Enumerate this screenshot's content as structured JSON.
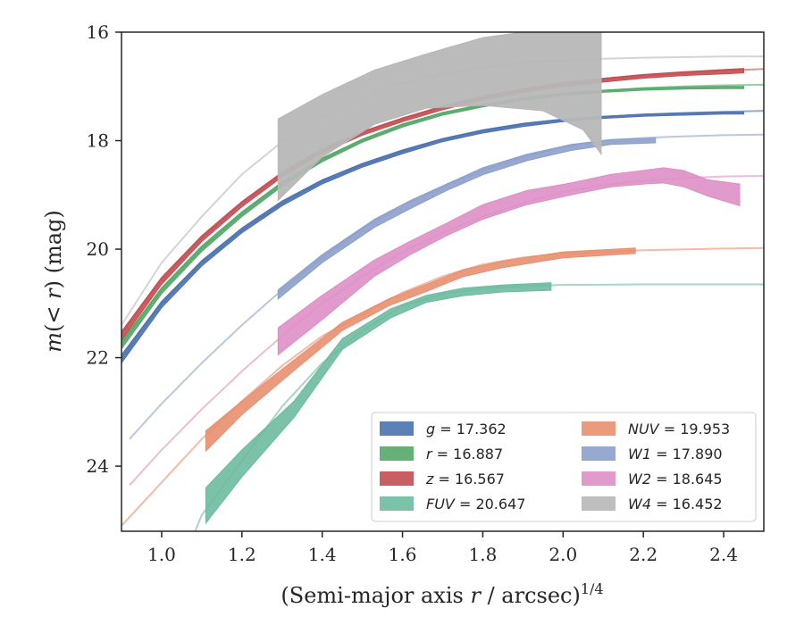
{
  "chart_data": {
    "type": "line",
    "title": "",
    "xlabel": "(Semi-major axis r / arcsec)^(1/4)",
    "xlabel_parts": {
      "pre": "(Semi-major axis ",
      "var": "r",
      "post": " / arcsec)",
      "sup": "1/4"
    },
    "ylabel": "m(< r) (mag)",
    "ylabel_parts": {
      "m": "m",
      "inner": "(< ",
      "r": "r",
      "post": ") (mag)"
    },
    "xlim": [
      0.9,
      2.5
    ],
    "ylim": [
      25.2,
      16.0
    ],
    "y_inverted": true,
    "xticks": [
      "1.0",
      "1.2",
      "1.4",
      "1.6",
      "1.8",
      "2.0",
      "2.2",
      "2.4"
    ],
    "xtick_values": [
      1.0,
      1.2,
      1.4,
      1.6,
      1.8,
      2.0,
      2.2,
      2.4
    ],
    "yticks": [
      "16",
      "18",
      "20",
      "22",
      "24"
    ],
    "ytick_values": [
      16,
      18,
      20,
      22,
      24
    ],
    "grid": false,
    "legend_position": "lower-right",
    "series": [
      {
        "name": "g = 17.362",
        "var": "g",
        "value": "17.362",
        "color": "#4c72b0",
        "model_x": [
          0.9,
          1.0,
          1.1,
          1.2,
          1.3,
          1.4,
          1.5,
          1.6,
          1.7,
          1.8,
          1.9,
          2.0,
          2.1,
          2.2,
          2.3,
          2.4,
          2.5
        ],
        "model_y": [
          22.0,
          21.0,
          20.25,
          19.65,
          19.15,
          18.75,
          18.45,
          18.2,
          17.98,
          17.82,
          17.7,
          17.62,
          17.56,
          17.52,
          17.49,
          17.47,
          17.45
        ],
        "band_x": [
          0.9,
          1.0,
          1.1,
          1.2,
          1.3,
          1.4,
          1.5,
          1.6,
          1.7,
          1.8,
          1.9,
          2.0,
          2.1,
          2.2,
          2.3,
          2.4,
          2.45
        ],
        "band_lo": [
          21.95,
          20.96,
          20.21,
          19.61,
          19.11,
          18.72,
          18.42,
          18.17,
          17.96,
          17.8,
          17.68,
          17.6,
          17.55,
          17.51,
          17.49,
          17.47,
          17.47
        ],
        "band_hi": [
          22.1,
          21.08,
          20.31,
          19.7,
          19.2,
          18.8,
          18.49,
          18.24,
          18.02,
          17.86,
          17.74,
          17.65,
          17.59,
          17.55,
          17.53,
          17.51,
          17.51
        ]
      },
      {
        "name": "r = 16.887",
        "var": "r",
        "value": "16.887",
        "color": "#55a868",
        "model_x": [
          0.9,
          1.0,
          1.1,
          1.2,
          1.3,
          1.4,
          1.5,
          1.6,
          1.7,
          1.8,
          1.9,
          2.0,
          2.1,
          2.2,
          2.3,
          2.4,
          2.5
        ],
        "model_y": [
          21.75,
          20.75,
          19.98,
          19.35,
          18.8,
          18.35,
          18.0,
          17.72,
          17.5,
          17.35,
          17.23,
          17.14,
          17.08,
          17.03,
          17.0,
          16.98,
          16.97
        ],
        "band_x": [
          0.9,
          1.0,
          1.1,
          1.2,
          1.3,
          1.4,
          1.5,
          1.6,
          1.7,
          1.8,
          1.9,
          2.0,
          2.1,
          2.2,
          2.3,
          2.4,
          2.45
        ],
        "band_lo": [
          21.7,
          20.71,
          19.94,
          19.31,
          18.76,
          18.32,
          17.97,
          17.69,
          17.48,
          17.33,
          17.21,
          17.12,
          17.07,
          17.03,
          17.01,
          17.0,
          17.0
        ],
        "band_hi": [
          21.84,
          20.82,
          20.04,
          19.4,
          18.84,
          18.39,
          18.03,
          17.75,
          17.53,
          17.38,
          17.26,
          17.17,
          17.11,
          17.07,
          17.05,
          17.04,
          17.04
        ]
      },
      {
        "name": "z = 16.567",
        "var": "z",
        "value": "16.567",
        "color": "#c44e52",
        "model_x": [
          0.9,
          1.0,
          1.1,
          1.2,
          1.3,
          1.4,
          1.5,
          1.6,
          1.7,
          1.8,
          1.9,
          2.0,
          2.1,
          2.2,
          2.3,
          2.4,
          2.5
        ],
        "model_y": [
          21.55,
          20.55,
          19.78,
          19.15,
          18.6,
          18.17,
          17.85,
          17.6,
          17.38,
          17.2,
          17.06,
          16.95,
          16.87,
          16.8,
          16.75,
          16.71,
          16.68
        ],
        "band_x": [
          0.9,
          1.0,
          1.1,
          1.2,
          1.3,
          1.4,
          1.5,
          1.6,
          1.7,
          1.8,
          1.9,
          2.0,
          2.1,
          2.2,
          2.3,
          2.4,
          2.45
        ],
        "band_lo": [
          21.52,
          20.52,
          19.75,
          19.12,
          18.58,
          18.15,
          17.83,
          17.58,
          17.36,
          17.18,
          17.04,
          16.93,
          16.85,
          16.78,
          16.73,
          16.69,
          16.67
        ],
        "band_hi": [
          21.68,
          20.65,
          19.86,
          19.22,
          18.67,
          18.23,
          17.9,
          17.65,
          17.43,
          17.25,
          17.11,
          17.0,
          16.92,
          16.85,
          16.8,
          16.77,
          16.75
        ]
      },
      {
        "name": "FUV = 20.647",
        "var": "FUV",
        "value": "20.647",
        "color": "#6dbb9f",
        "model_x": [
          1.05,
          1.1,
          1.2,
          1.3,
          1.4,
          1.5,
          1.6,
          1.7,
          1.8,
          1.9,
          2.0,
          2.2,
          2.4,
          2.5
        ],
        "model_y": [
          25.8,
          24.9,
          23.9,
          22.9,
          22.1,
          21.5,
          21.05,
          20.83,
          20.72,
          20.68,
          20.66,
          20.65,
          20.65,
          20.65
        ],
        "band_x": [
          1.11,
          1.2,
          1.33,
          1.45,
          1.57,
          1.66,
          1.75,
          1.85,
          1.97
        ],
        "band_lo": [
          24.4,
          23.7,
          22.8,
          21.65,
          21.1,
          20.85,
          20.72,
          20.66,
          20.62
        ],
        "band_hi": [
          25.05,
          24.2,
          23.1,
          21.85,
          21.27,
          20.98,
          20.86,
          20.79,
          20.76
        ]
      },
      {
        "name": "NUV = 19.953",
        "var": "NUV",
        "value": "19.953",
        "color": "#e8906f",
        "model_x": [
          0.9,
          1.0,
          1.1,
          1.2,
          1.3,
          1.4,
          1.5,
          1.6,
          1.7,
          1.8,
          1.9,
          2.0,
          2.2,
          2.4,
          2.5
        ],
        "model_y": [
          25.1,
          24.3,
          23.5,
          22.8,
          22.15,
          21.6,
          21.2,
          20.8,
          20.5,
          20.28,
          20.15,
          20.08,
          20.02,
          19.99,
          19.98
        ],
        "band_x": [
          1.11,
          1.2,
          1.32,
          1.45,
          1.57,
          1.66,
          1.75,
          1.85,
          2.0,
          2.18
        ],
        "band_lo": [
          23.35,
          22.8,
          22.1,
          21.35,
          20.9,
          20.65,
          20.38,
          20.22,
          20.05,
          19.98
        ],
        "band_hi": [
          23.72,
          23.05,
          22.3,
          21.5,
          21.03,
          20.78,
          20.51,
          20.34,
          20.16,
          20.08
        ]
      },
      {
        "name": "W1 = 17.890",
        "var": "W1",
        "value": "17.890",
        "color": "#8da0cb",
        "model_x": [
          0.92,
          1.0,
          1.1,
          1.2,
          1.3,
          1.4,
          1.5,
          1.6,
          1.7,
          1.8,
          1.9,
          2.0,
          2.1,
          2.2,
          2.3,
          2.4,
          2.5
        ],
        "model_y": [
          23.5,
          22.85,
          22.1,
          21.4,
          20.75,
          20.15,
          19.62,
          19.2,
          18.85,
          18.55,
          18.3,
          18.12,
          18.0,
          17.95,
          17.92,
          17.9,
          17.89
        ],
        "band_x": [
          1.29,
          1.4,
          1.53,
          1.62,
          1.71,
          1.8,
          1.91,
          2.02,
          2.12,
          2.23
        ],
        "band_lo": [
          20.75,
          20.1,
          19.45,
          19.1,
          18.8,
          18.5,
          18.25,
          18.07,
          17.98,
          17.95
        ],
        "band_hi": [
          20.92,
          20.25,
          19.6,
          19.25,
          18.92,
          18.63,
          18.37,
          18.18,
          18.07,
          18.04
        ]
      },
      {
        "name": "W2 = 18.645",
        "var": "W2",
        "value": "18.645",
        "color": "#dd8fc5",
        "model_x": [
          0.92,
          1.0,
          1.1,
          1.2,
          1.3,
          1.4,
          1.5,
          1.6,
          1.7,
          1.8,
          1.9,
          2.0,
          2.1,
          2.2,
          2.3,
          2.4,
          2.5
        ],
        "model_y": [
          24.35,
          23.7,
          22.95,
          22.25,
          21.6,
          21.0,
          20.5,
          20.05,
          19.7,
          19.4,
          19.15,
          18.95,
          18.82,
          18.74,
          18.69,
          18.66,
          18.65
        ],
        "band_x": [
          1.29,
          1.4,
          1.53,
          1.62,
          1.71,
          1.8,
          1.91,
          2.02,
          2.12,
          2.2,
          2.25,
          2.3,
          2.36,
          2.44
        ],
        "band_lo": [
          21.45,
          20.85,
          20.2,
          19.85,
          19.52,
          19.18,
          18.92,
          18.78,
          18.62,
          18.55,
          18.5,
          18.55,
          18.72,
          18.8
        ],
        "band_hi": [
          21.95,
          21.3,
          20.5,
          20.1,
          19.75,
          19.45,
          19.18,
          19.0,
          18.85,
          18.8,
          18.78,
          18.85,
          19.02,
          19.2
        ]
      },
      {
        "name": "W4 = 16.452",
        "var": "W4",
        "value": "16.452",
        "color": "#b7b7b7",
        "model_x": [
          0.9,
          1.0,
          1.1,
          1.2,
          1.3,
          1.4,
          1.5,
          1.6,
          1.7,
          1.8,
          1.9,
          2.0,
          2.1,
          2.2,
          2.3,
          2.4,
          2.5
        ],
        "model_y": [
          21.4,
          20.25,
          19.4,
          18.62,
          18.02,
          17.55,
          17.2,
          16.95,
          16.77,
          16.65,
          16.57,
          16.52,
          16.49,
          16.47,
          16.46,
          16.45,
          16.45
        ],
        "band_x": [
          1.29,
          1.4,
          1.53,
          1.66,
          1.8,
          1.95,
          2.05,
          2.095
        ],
        "band_lo": [
          17.6,
          17.15,
          16.7,
          16.4,
          16.1,
          15.95,
          15.95,
          15.95
        ],
        "band_hi": [
          19.1,
          18.3,
          17.7,
          17.4,
          17.35,
          17.45,
          17.8,
          18.25
        ]
      }
    ]
  }
}
